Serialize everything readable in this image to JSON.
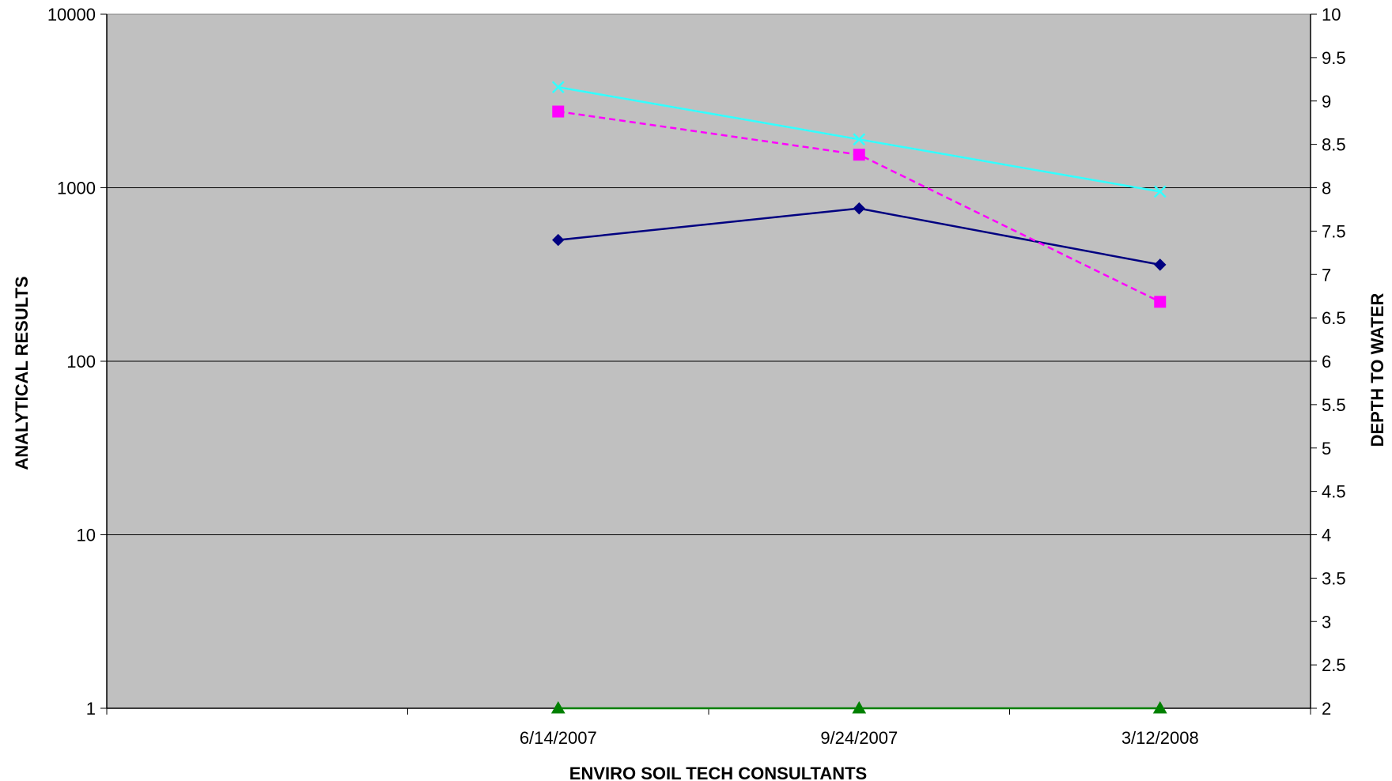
{
  "chart_data": {
    "type": "line",
    "title": "",
    "xlabel": "ENVIRO SOIL TECH CONSULTANTS",
    "ylabel": "ANALYTICAL RESULTS",
    "y2label": "DEPTH TO WATER",
    "categories": [
      "",
      "6/14/2007",
      "9/24/2007",
      "3/12/2008"
    ],
    "y_scale": "log",
    "ylim": [
      1,
      10000
    ],
    "y_ticks": [
      "1",
      "10",
      "100",
      "1000",
      "10000"
    ],
    "y2lim": [
      2,
      10
    ],
    "y2_ticks": [
      "2",
      "2.5",
      "3",
      "3.5",
      "4",
      "4.5",
      "5",
      "5.5",
      "6",
      "6.5",
      "7",
      "7.5",
      "8",
      "8.5",
      "9",
      "9.5",
      "10"
    ],
    "grid": "major y gridlines",
    "legend": "none",
    "plot_background": "#c0c0c0",
    "series": [
      {
        "axis": "left",
        "values": [
          null,
          500,
          760,
          360
        ],
        "color": "#000080",
        "marker": "diamond",
        "dash": "solid"
      },
      {
        "axis": "left",
        "values": [
          null,
          2750,
          1550,
          220
        ],
        "color": "#ff00ff",
        "marker": "square",
        "dash": "dashed"
      },
      {
        "axis": "left",
        "values": [
          null,
          3800,
          1900,
          950
        ],
        "color": "#33ffff",
        "marker": "x",
        "dash": "solid"
      },
      {
        "axis": "right",
        "values": [
          null,
          2,
          2,
          2
        ],
        "color": "#008000",
        "marker": "triangle",
        "dash": "solid"
      }
    ]
  }
}
